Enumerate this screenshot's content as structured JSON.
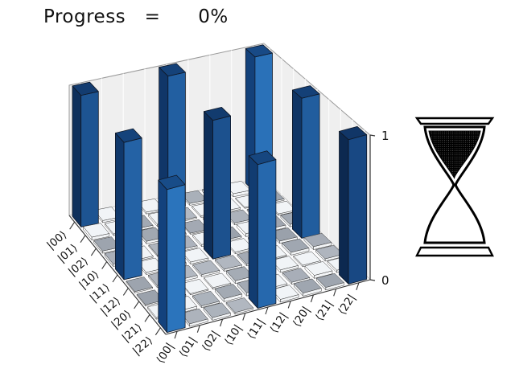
{
  "title": "Progress   =      0%",
  "busy_indicator": {
    "icon": "hourglass",
    "state": "top-bulb-full"
  },
  "chart_data": {
    "type": "bar",
    "subtype": "3d-matrix-histogram",
    "title": "",
    "xlabel": "",
    "ylabel": "",
    "row_labels": [
      "|00⟩",
      "|01⟩",
      "|02⟩",
      "|10⟩",
      "|11⟩",
      "|12⟩",
      "|20⟩",
      "|21⟩",
      "|22⟩"
    ],
    "col_labels": [
      "⟨00|",
      "⟨01|",
      "⟨02|",
      "⟨10|",
      "⟨11|",
      "⟨12|",
      "⟨20|",
      "⟨21|",
      "⟨22|"
    ],
    "z_ticks": [
      "0",
      "1"
    ],
    "zlim": [
      0,
      1
    ],
    "grid": true,
    "matrix": [
      [
        1,
        0,
        0,
        0,
        1,
        0,
        0,
        0,
        1
      ],
      [
        0,
        0,
        0,
        0,
        0,
        0,
        0,
        0,
        0
      ],
      [
        0,
        0,
        0,
        0,
        0,
        0,
        0,
        0,
        0
      ],
      [
        0,
        0,
        0,
        0,
        0,
        0,
        0,
        0,
        0
      ],
      [
        1,
        0,
        0,
        0,
        1,
        0,
        0,
        0,
        1
      ],
      [
        0,
        0,
        0,
        0,
        0,
        0,
        0,
        0,
        0
      ],
      [
        0,
        0,
        0,
        0,
        0,
        0,
        0,
        0,
        0
      ],
      [
        0,
        0,
        0,
        0,
        0,
        0,
        0,
        0,
        0
      ],
      [
        1,
        0,
        0,
        0,
        1,
        0,
        0,
        0,
        1
      ]
    ],
    "bar_tones": {
      "0,0": 0.35,
      "0,4": 0.55,
      "0,8": 0.85,
      "4,0": 0.6,
      "4,4": 0.3,
      "4,8": 0.5,
      "8,0": 0.9,
      "8,4": 0.7,
      "8,8": 0.15
    },
    "colors": {
      "bar_front_dark": "#143f77",
      "bar_front_light": "#2e7ac4",
      "bar_top_dark": "#0f3261",
      "bar_top_light": "#1c5697",
      "bar_side_dark": "#0a2447",
      "bar_side_light": "#174e92",
      "tile_gray_top": "#9aa1ab",
      "tile_white_top": "#f1f4f7",
      "tile_side": "#f2f4f6",
      "wall": "#efefef",
      "wall_grid": "#fbfbfb",
      "wall_edge": "#9a9a9a",
      "floor": "#fbfbfc",
      "axis_line": "#333333",
      "label_color": "#111111"
    }
  }
}
